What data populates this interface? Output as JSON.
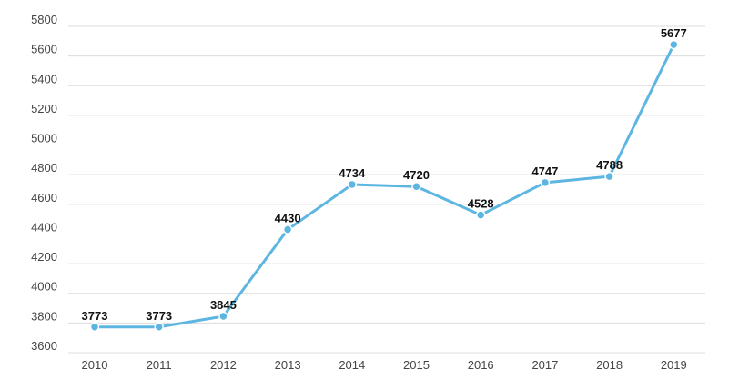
{
  "chart_data": {
    "type": "line",
    "categories": [
      "2010",
      "2011",
      "2012",
      "2013",
      "2014",
      "2015",
      "2016",
      "2017",
      "2018",
      "2019"
    ],
    "series": [
      {
        "values": [
          3773,
          3773,
          3845,
          4430,
          4734,
          4720,
          4528,
          4747,
          4788,
          5677
        ]
      }
    ],
    "ylim": [
      3600,
      5800
    ],
    "yticks": [
      3600,
      3800,
      4000,
      4200,
      4400,
      4600,
      4800,
      5000,
      5200,
      5400,
      5600,
      5800
    ],
    "data_labels": [
      "3773",
      "3773",
      "3845",
      "4430",
      "4734",
      "4720",
      "4528",
      "4747",
      "4788",
      "5677"
    ],
    "grid": true,
    "legend": "none",
    "colors": {
      "line": "#5db6e2",
      "marker": "#5db6e2",
      "grid": "#dcdcdc"
    }
  }
}
